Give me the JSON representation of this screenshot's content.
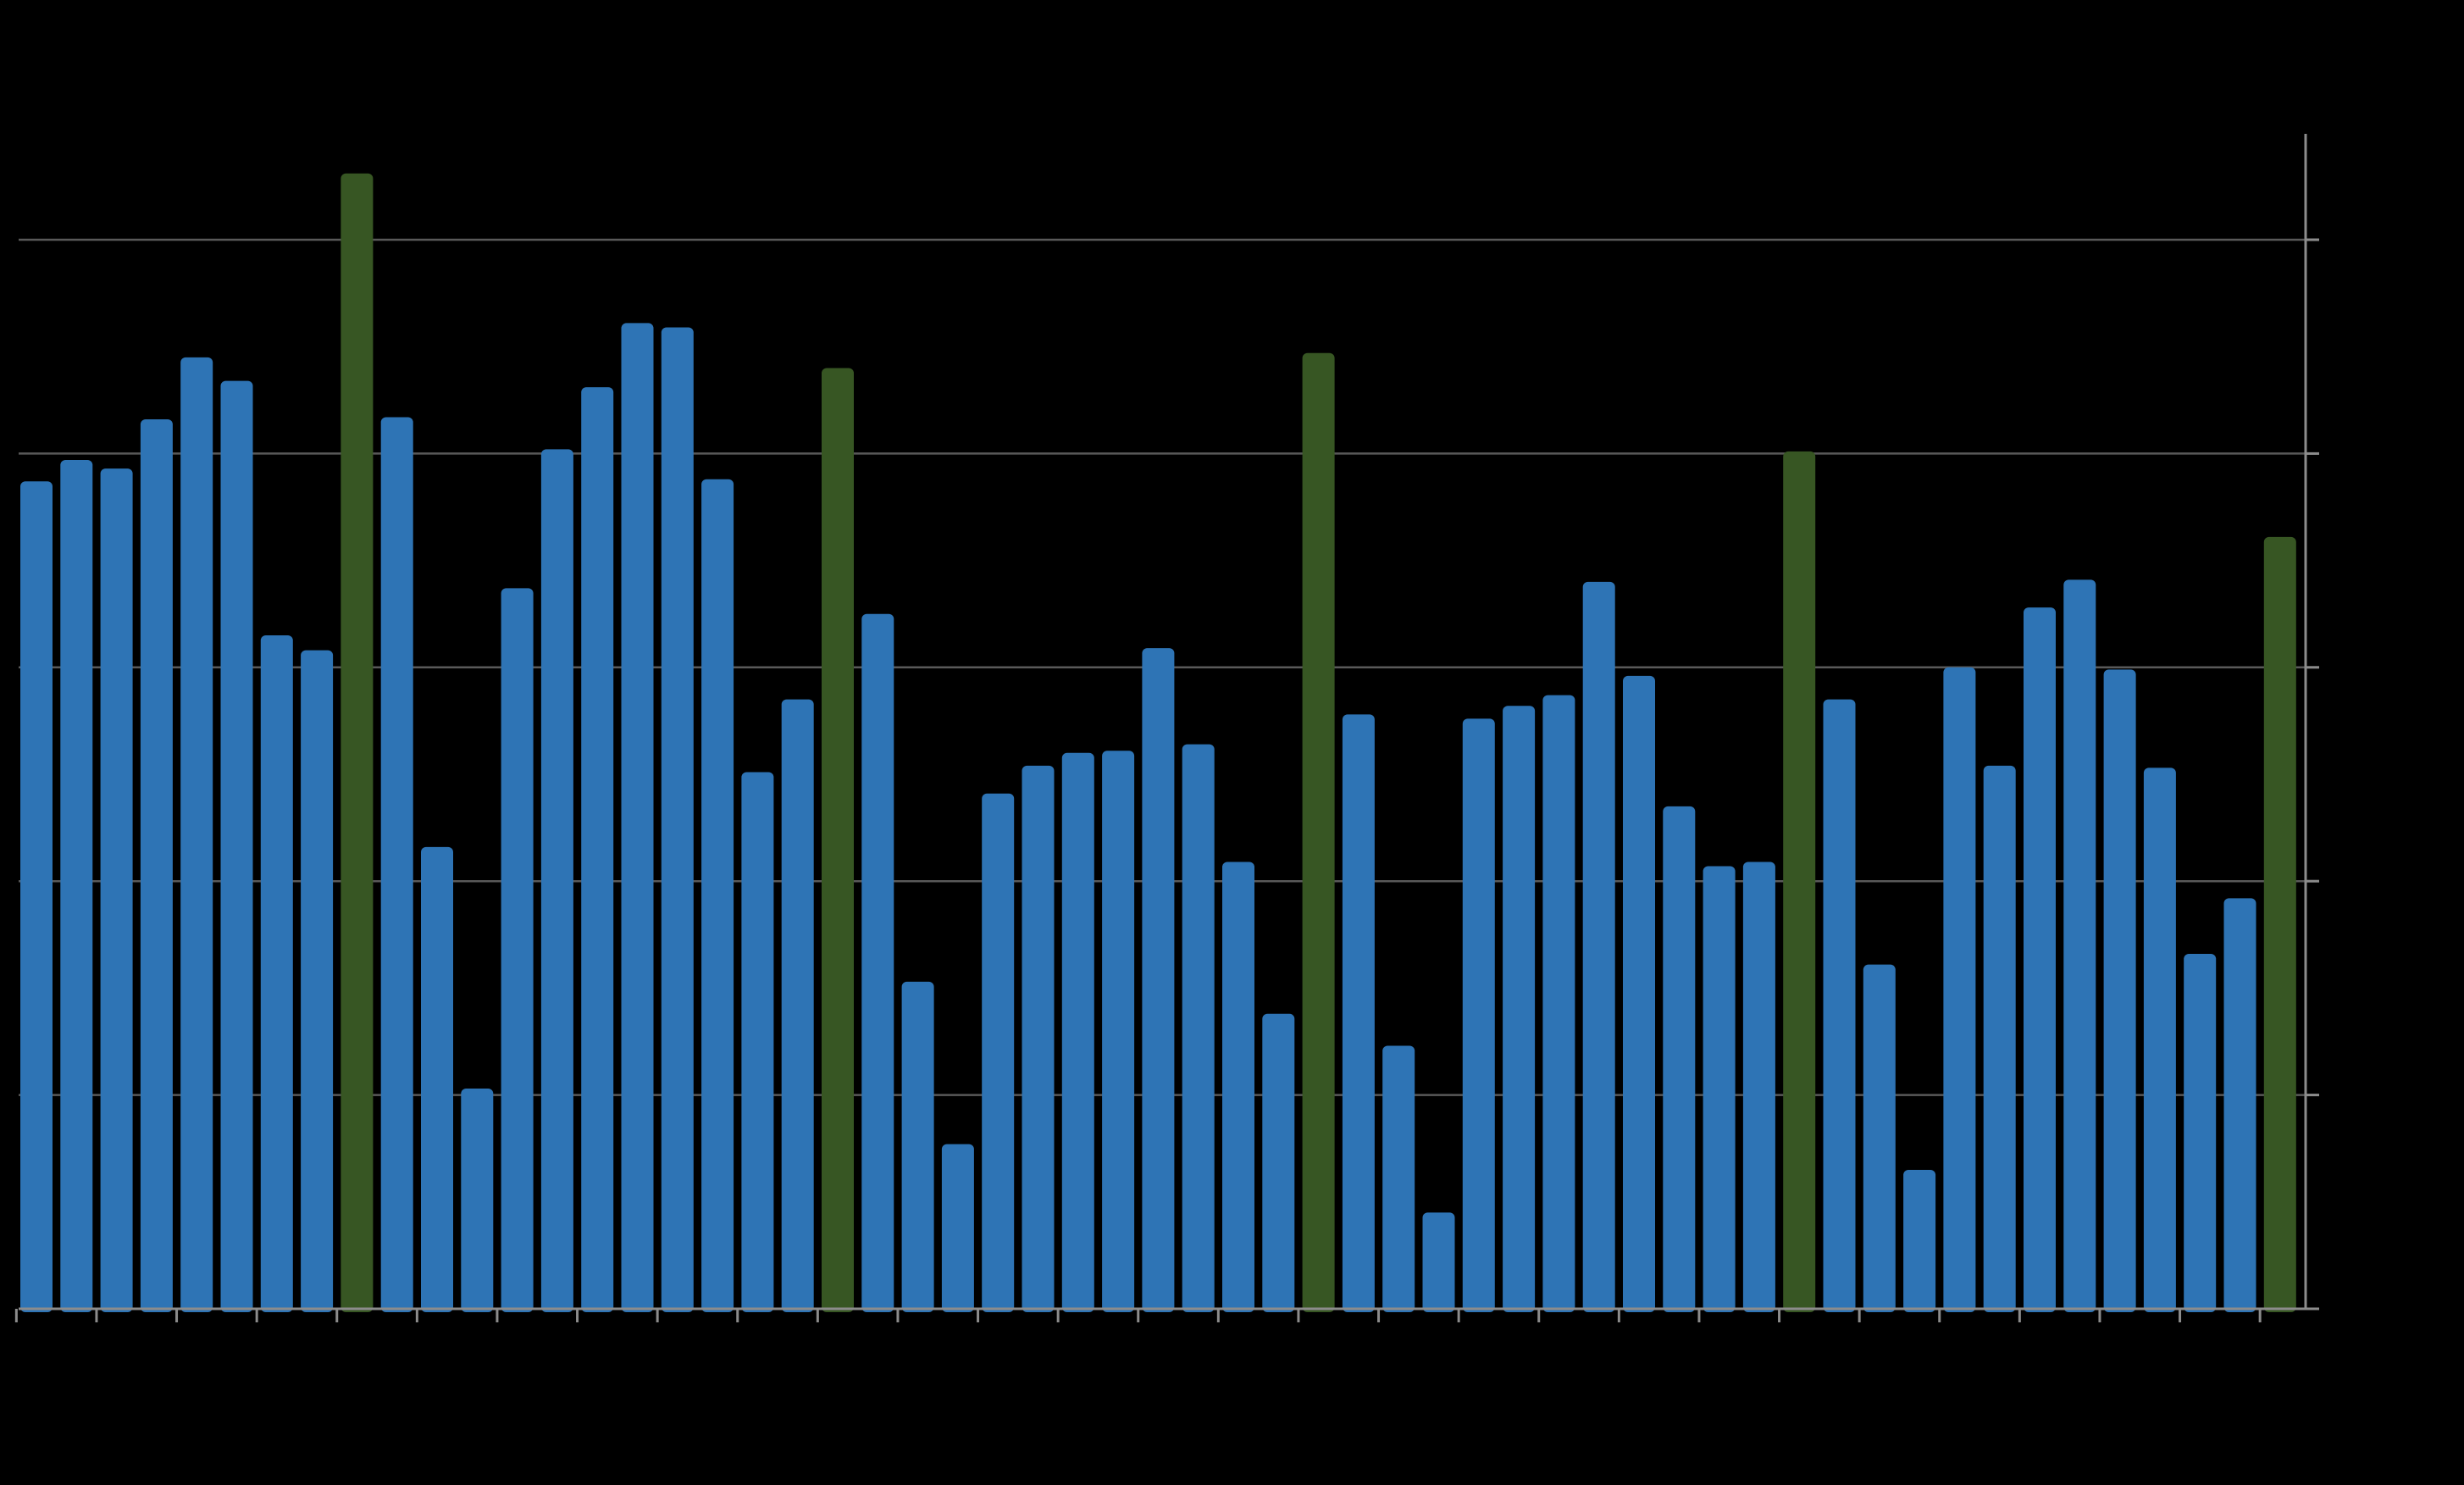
{
  "chart_data": {
    "type": "bar",
    "title": "",
    "xlabel": "",
    "ylabel": "",
    "ylim": [
      0,
      5.35
    ],
    "yticks": [
      0,
      1,
      2,
      3,
      4,
      5
    ],
    "grid": true,
    "colors": {
      "regular": "#2e74b5",
      "highlight": "#375623",
      "gridline": "#595959",
      "axis": "#8c8c8c",
      "background": "#000000"
    },
    "values": [
      3.87,
      3.97,
      3.93,
      4.16,
      4.45,
      4.34,
      3.15,
      3.08,
      5.31,
      4.17,
      2.16,
      1.03,
      3.37,
      4.02,
      4.31,
      4.61,
      4.59,
      3.88,
      2.51,
      2.85,
      4.4,
      3.25,
      1.53,
      0.77,
      2.41,
      2.54,
      2.6,
      2.61,
      3.09,
      2.64,
      2.09,
      1.38,
      4.47,
      2.78,
      1.23,
      0.45,
      2.76,
      2.82,
      2.87,
      3.4,
      2.96,
      2.35,
      2.07,
      2.09,
      4.01,
      2.85,
      1.61,
      0.65,
      3.0,
      2.54,
      3.28,
      3.41,
      2.99,
      2.53,
      1.66,
      1.92,
      3.61
    ],
    "highlight_indices": [
      8,
      20,
      32,
      44,
      56
    ]
  }
}
